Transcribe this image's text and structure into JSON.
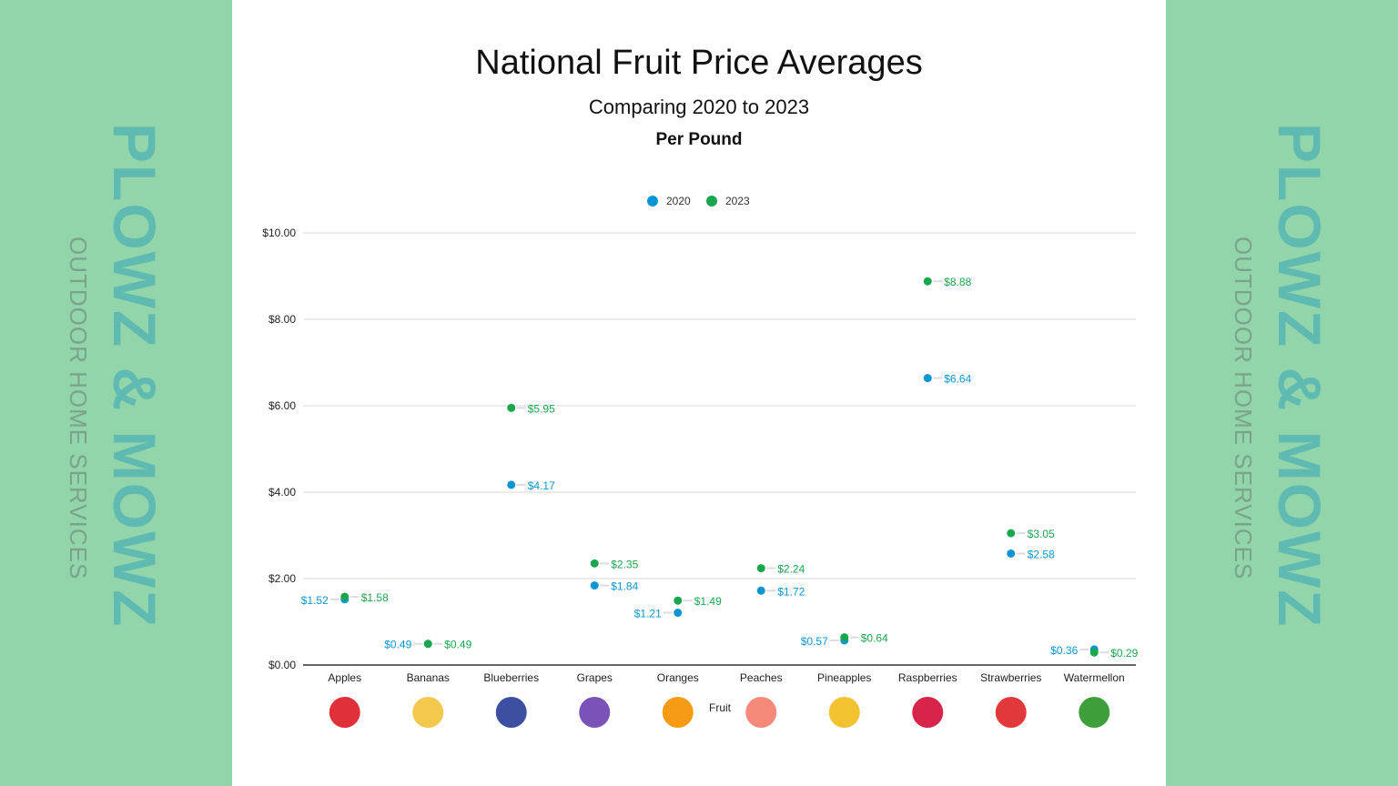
{
  "logo": {
    "brand": "PLOWZ & MOWZ",
    "tagline": "OUTDOOR HOME SERVICES"
  },
  "chart_data": {
    "type": "scatter",
    "title": "National Fruit Price Averages",
    "subtitle": "Comparing 2020 to 2023",
    "subtitle2": "Per Pound",
    "xlabel": "Fruit",
    "ylabel": "",
    "ylim": [
      0,
      10
    ],
    "yticks": [
      "$0.00",
      "$2.00",
      "$4.00",
      "$6.00",
      "$8.00",
      "$10.00"
    ],
    "grid": true,
    "legend_placement": "top",
    "categories": [
      "Apples",
      "Bananas",
      "Blueberries",
      "Grapes",
      "Oranges",
      "Peaches",
      "Pineapples",
      "Raspberries",
      "Strawberries",
      "Watermellon"
    ],
    "series": [
      {
        "name": "2020",
        "color": "#0b96d3",
        "values": [
          1.52,
          0.49,
          4.17,
          1.84,
          1.21,
          1.72,
          0.57,
          6.64,
          2.58,
          0.36
        ],
        "labels": [
          "$1.52",
          "$0.49",
          "$4.17",
          "$1.84",
          "$1.21",
          "$1.72",
          "$0.57",
          "$6.64",
          "$2.58",
          "$0.36"
        ]
      },
      {
        "name": "2023",
        "color": "#1aa64d",
        "values": [
          1.58,
          0.49,
          5.95,
          2.35,
          1.49,
          2.24,
          0.64,
          8.88,
          3.05,
          0.29
        ],
        "labels": [
          "$1.58",
          "$0.49",
          "$5.95",
          "$2.35",
          "$1.49",
          "$2.24",
          "$0.64",
          "$8.88",
          "$3.05",
          "$0.29"
        ]
      }
    ],
    "fruit_icons": [
      "apple-icon",
      "banana-icon",
      "blueberries-icon",
      "grapes-icon",
      "orange-icon",
      "peach-icon",
      "pineapple-icon",
      "raspberry-icon",
      "strawberry-icon",
      "watermelon-icon"
    ],
    "fruit_colors": [
      "#e0303a",
      "#f2c94c",
      "#3c4fa0",
      "#7b52b8",
      "#f59a12",
      "#f58a7a",
      "#f2c230",
      "#d8234a",
      "#e23a3a",
      "#3f9f3a"
    ]
  }
}
